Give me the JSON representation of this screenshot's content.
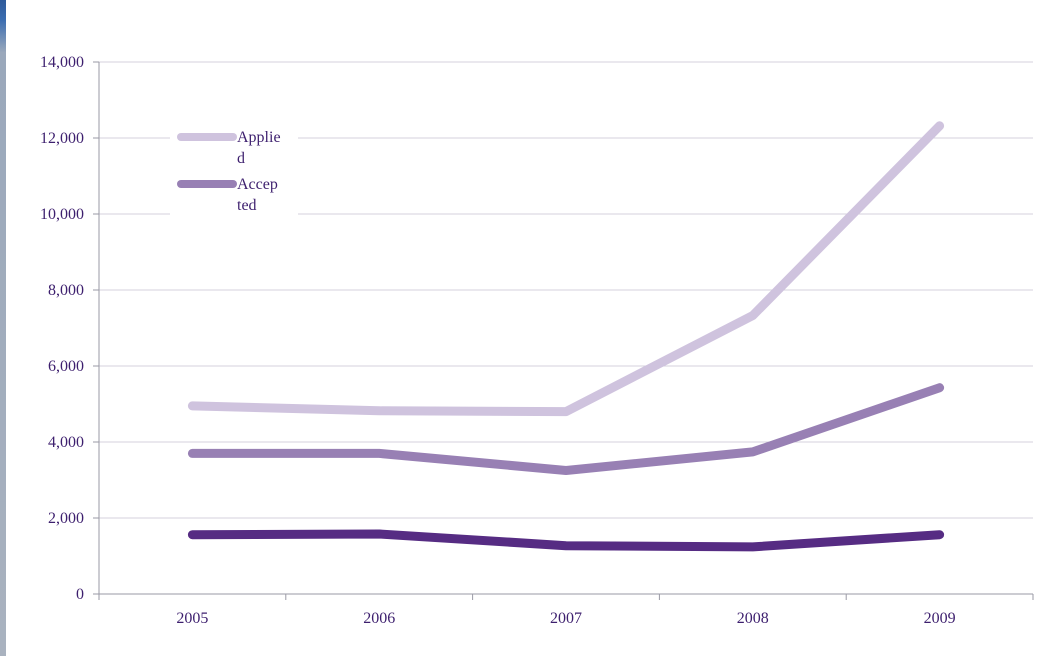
{
  "chart_data": {
    "type": "line",
    "title": "",
    "xlabel": "",
    "ylabel": "",
    "categories": [
      "2005",
      "2006",
      "2007",
      "2008",
      "2009"
    ],
    "ylim": [
      0,
      14000
    ],
    "yticks": [
      "0",
      "2,000",
      "4,000",
      "6,000",
      "8,000",
      "10,000",
      "12,000",
      "14,000"
    ],
    "ytick_values": [
      0,
      2000,
      4000,
      6000,
      8000,
      10000,
      12000,
      14000
    ],
    "grid": true,
    "legend": "top-left",
    "series": [
      {
        "name": "Applied",
        "legend_lines": [
          "Applie",
          "d"
        ],
        "values": [
          4950,
          4820,
          4800,
          7330,
          12320
        ],
        "color": "#cfc3de"
      },
      {
        "name": "Accepted",
        "legend_lines": [
          "Accep",
          "ted"
        ],
        "values": [
          3700,
          3700,
          3250,
          3740,
          5430
        ],
        "color": "#9880b4"
      },
      {
        "values": [
          1560,
          1580,
          1270,
          1240,
          1560
        ],
        "color": "#562c83"
      }
    ]
  }
}
